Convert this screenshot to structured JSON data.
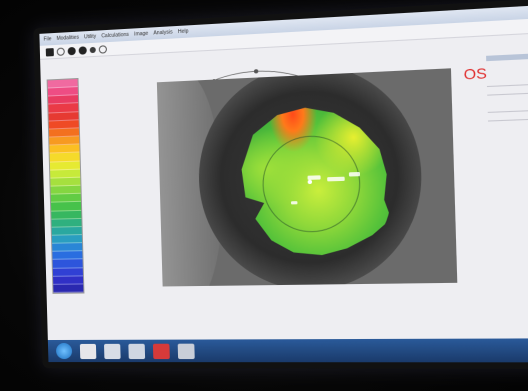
{
  "window": {
    "menu": [
      "File",
      "Modalities",
      "Utility",
      "Calculations",
      "Image",
      "Analysis",
      "Help"
    ]
  },
  "eye_label": "OS",
  "side_panel_lines": [
    "",
    "",
    "",
    ""
  ],
  "note": "",
  "scale_values": [
    "",
    "",
    "",
    "",
    "",
    "",
    "",
    "",
    "",
    "",
    "",
    "",
    "",
    "",
    "",
    "",
    "",
    "",
    "",
    "",
    "",
    "",
    "",
    "",
    "",
    ""
  ],
  "colors": {
    "scale": [
      "#f06aa0",
      "#ee4d84",
      "#e83c62",
      "#ea3a46",
      "#e63a32",
      "#ef4a25",
      "#f3701f",
      "#f79a21",
      "#fbbf22",
      "#f5da2a",
      "#e6ea32",
      "#c7ea3a",
      "#a6e03e",
      "#84d641",
      "#62cc44",
      "#47c24b",
      "#37b760",
      "#2fb07f",
      "#2aa8a0",
      "#2a9ec0",
      "#2a86d6",
      "#2a6ee0",
      "#2d55dc",
      "#3040d4",
      "#3030c6",
      "#2a28b0"
    ],
    "os_label": "#e03030"
  },
  "icons": [
    "new-icon",
    "open-icon",
    "save-icon",
    "settings-icon",
    "record-icon",
    "select-icon"
  ],
  "taskbar_icons": [
    "start-icon",
    "explorer-icon",
    "media-icon",
    "app-icon",
    "active-app-icon",
    "folder-icon"
  ]
}
